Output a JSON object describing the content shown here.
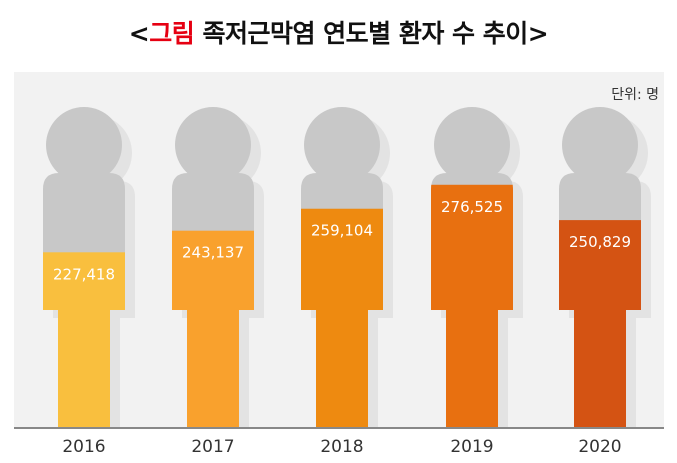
{
  "title": {
    "bracket_left": "<",
    "prefix": "그림",
    "text": " 족저근막염 연도별 환자 수 추이",
    "bracket_right": ">"
  },
  "unit_label": "단위: 명",
  "colors": {
    "silhouette": "#c8c8c8",
    "shadow": "#e3e3e3",
    "bars": [
      "#f9bf3e",
      "#f9a12d",
      "#ee8a10",
      "#e87010",
      "#d45313"
    ],
    "axis": "#888888"
  },
  "chart_data": {
    "type": "bar",
    "style": "pictograph-person",
    "categories": [
      "2016",
      "2017",
      "2018",
      "2019",
      "2020"
    ],
    "values": [
      227418,
      243137,
      259104,
      276525,
      250829
    ],
    "value_labels": [
      "227,418",
      "243,137",
      "259,104",
      "276,525",
      "250,829"
    ],
    "unit": "단위: 명",
    "legend": "none",
    "grid": false
  }
}
